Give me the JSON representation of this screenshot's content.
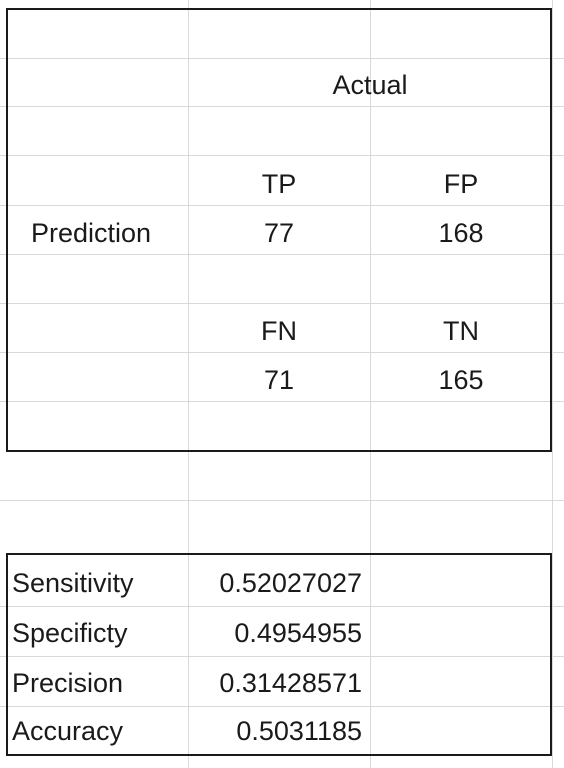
{
  "confusion_matrix": {
    "actual_header": "Actual",
    "prediction_label": "Prediction",
    "tp_label": "TP",
    "fp_label": "FP",
    "fn_label": "FN",
    "tn_label": "TN",
    "tp_value": "77",
    "fp_value": "168",
    "fn_value": "71",
    "tn_value": "165"
  },
  "metrics": [
    {
      "label": "Sensitivity",
      "value": "0.52027027"
    },
    {
      "label": "Specificty",
      "value": "0.4954955"
    },
    {
      "label": "Precision",
      "value": "0.31428571"
    },
    {
      "label": "Accuracy",
      "value": "0.5031185"
    }
  ]
}
